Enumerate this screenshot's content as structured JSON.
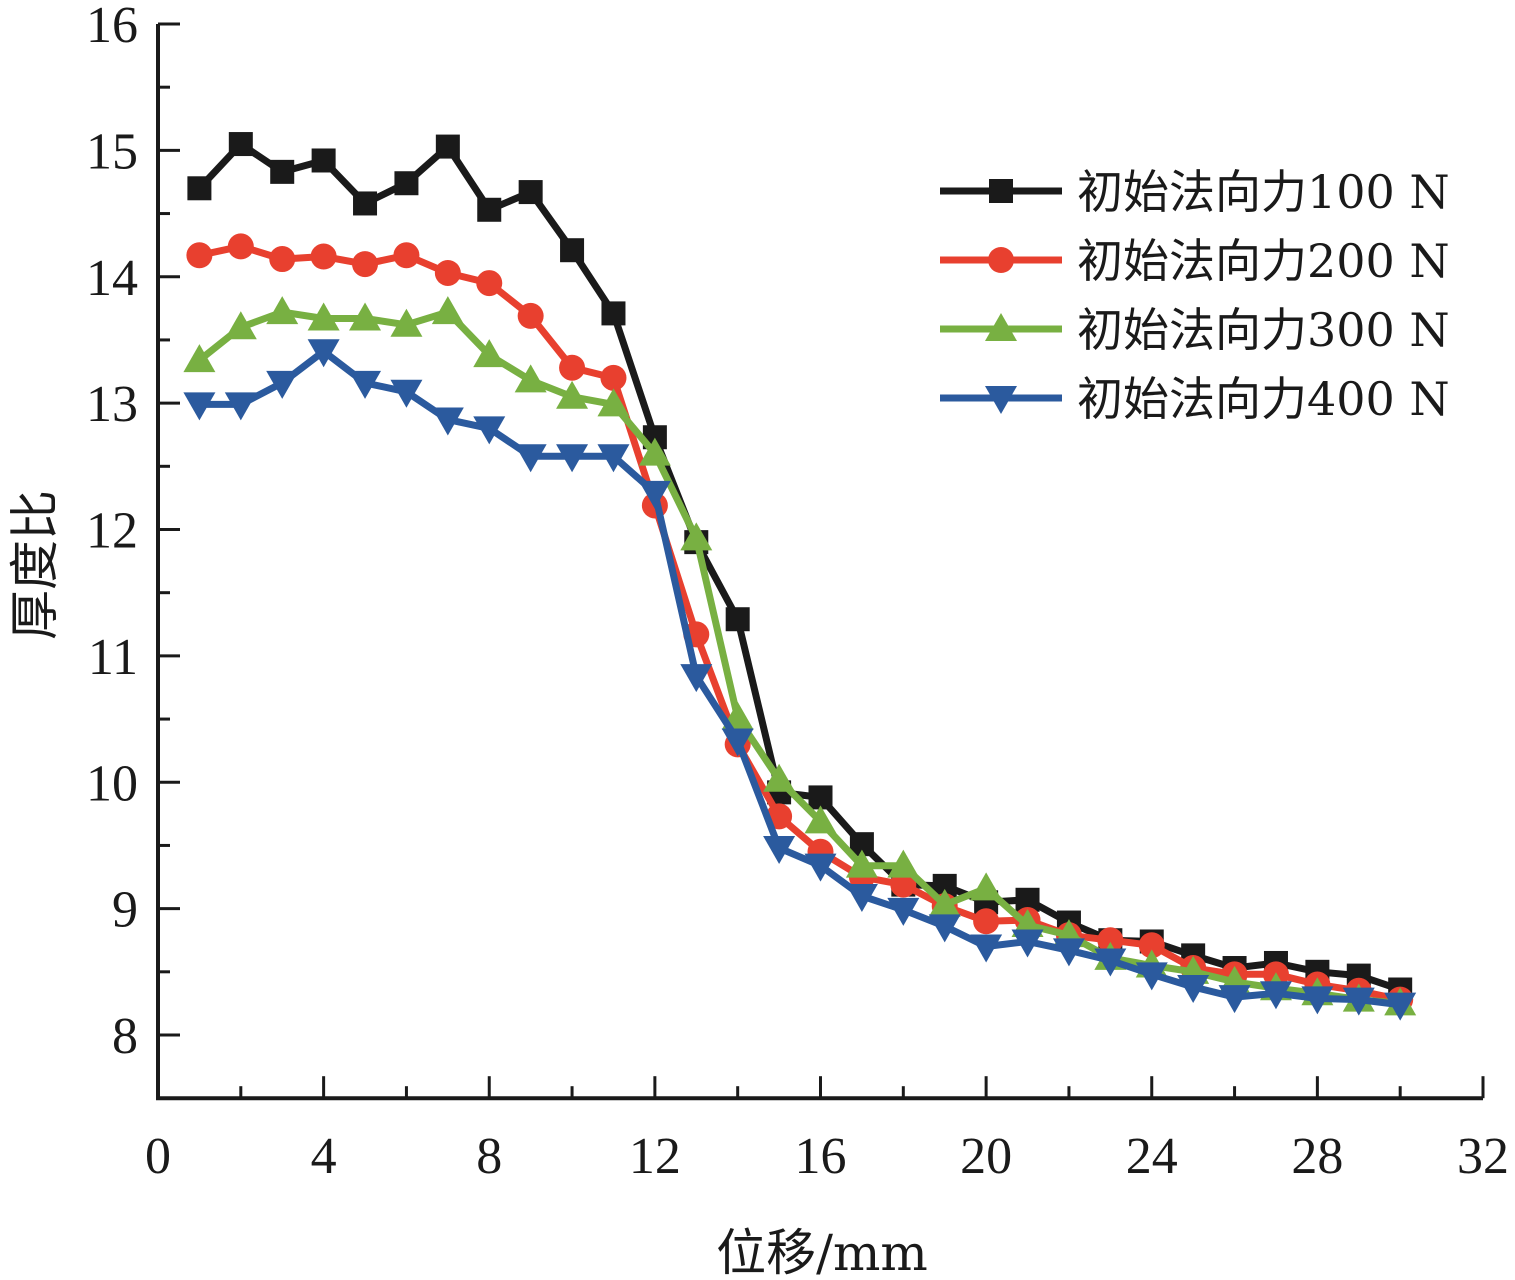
{
  "chart_data": {
    "type": "line",
    "title": "",
    "xlabel": "位移/mm",
    "ylabel": "厚度比",
    "xlim": [
      0,
      32
    ],
    "ylim": [
      7.5,
      16
    ],
    "xticks": [
      0,
      4,
      8,
      12,
      16,
      20,
      24,
      28,
      32
    ],
    "xtick_labels": [
      "0",
      "4",
      "8",
      "12",
      "16",
      "20",
      "24",
      "28",
      "32"
    ],
    "yticks": [
      8,
      9,
      10,
      11,
      12,
      13,
      14,
      15,
      16
    ],
    "ytick_labels": [
      "8",
      "9",
      "10",
      "11",
      "12",
      "13",
      "14",
      "15",
      "16"
    ],
    "grid": false,
    "legend_position": "top-right",
    "x": [
      1,
      2,
      3,
      4,
      5,
      6,
      7,
      8,
      9,
      10,
      11,
      12,
      13,
      14,
      15,
      16,
      17,
      18,
      19,
      20,
      21,
      22,
      23,
      24,
      25,
      26,
      27,
      28,
      29,
      30
    ],
    "series": [
      {
        "name": "初始法向力100 N",
        "color": "#1a1a1a",
        "marker": "square",
        "values": [
          14.7,
          15.05,
          14.83,
          14.92,
          14.58,
          14.74,
          15.03,
          14.53,
          14.67,
          14.21,
          13.71,
          12.73,
          11.9,
          11.29,
          9.92,
          9.88,
          9.51,
          9.19,
          9.18,
          9.05,
          9.07,
          8.89,
          8.75,
          8.74,
          8.63,
          8.53,
          8.57,
          8.5,
          8.47,
          8.36
        ]
      },
      {
        "name": "初始法向力200 N",
        "color": "#e8402f",
        "marker": "circle",
        "values": [
          14.17,
          14.24,
          14.14,
          14.16,
          14.1,
          14.17,
          14.03,
          13.95,
          13.69,
          13.28,
          13.2,
          12.19,
          11.17,
          10.3,
          9.73,
          9.45,
          9.25,
          9.19,
          9.02,
          8.9,
          8.91,
          8.79,
          8.75,
          8.71,
          8.53,
          8.48,
          8.48,
          8.4,
          8.35,
          8.28
        ]
      },
      {
        "name": "初始法向力300 N",
        "color": "#78b042",
        "marker": "triangle-up",
        "values": [
          13.34,
          13.6,
          13.72,
          13.67,
          13.67,
          13.62,
          13.72,
          13.38,
          13.18,
          13.05,
          12.99,
          12.6,
          11.93,
          10.51,
          10.02,
          9.69,
          9.34,
          9.34,
          9.03,
          9.16,
          8.87,
          8.79,
          8.61,
          8.55,
          8.5,
          8.42,
          8.37,
          8.33,
          8.28,
          8.25
        ]
      },
      {
        "name": "初始法向力400 N",
        "color": "#2b5a9e",
        "marker": "triangle-down",
        "values": [
          12.99,
          12.99,
          13.16,
          13.41,
          13.16,
          13.09,
          12.87,
          12.8,
          12.58,
          12.58,
          12.58,
          12.29,
          10.84,
          10.33,
          9.48,
          9.34,
          9.1,
          8.99,
          8.86,
          8.7,
          8.74,
          8.67,
          8.59,
          8.48,
          8.38,
          8.3,
          8.33,
          8.29,
          8.28,
          8.24
        ]
      }
    ]
  }
}
